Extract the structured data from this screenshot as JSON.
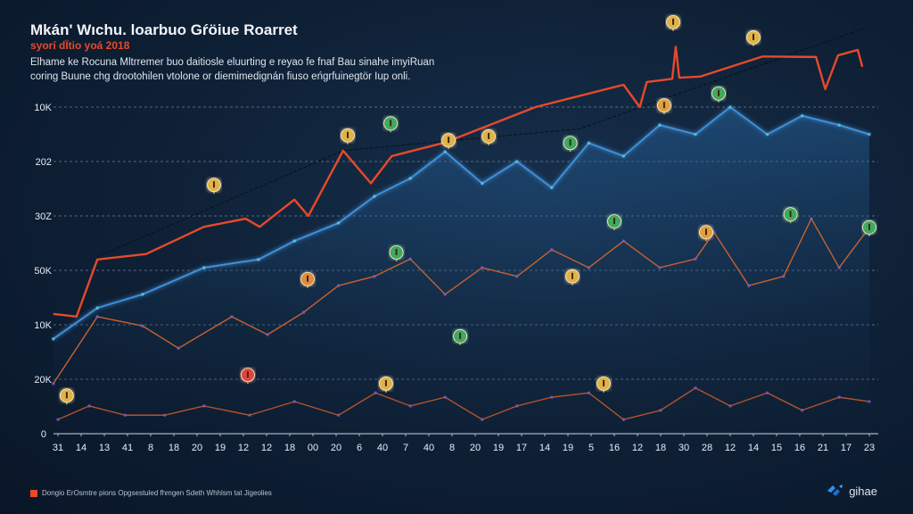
{
  "header": {
    "title": "Mkán' Wıchu. loarbuo Gŕöiue Roarret",
    "subtitle": "syorí dÏtio yoá 2018",
    "description_lines": [
      "Elhame ke Rocuna Mltrremer buo daitiosle eluurting e reyao fe fnaf Bau sinahe imyiRuan",
      "coring Buune chg drootohilen vtolone or diemimedignán fiuso eńgrfuinegtör Iup onli."
    ]
  },
  "legend": {
    "label": "Dongio ErOsmtre pions Opgsestuled fhmgen Sdeth Whhlsm tat Jigeolies",
    "color": "#e8492a"
  },
  "logo": {
    "text": "gihae"
  },
  "chart_data": {
    "type": "line",
    "title": "Mkán' Wıchu. loarbuo Gŕöiue Roarret",
    "xlabel": "",
    "ylabel": "",
    "x_tick_labels": [
      "31",
      "14",
      "13",
      "41",
      "8",
      "18",
      "20",
      "19",
      "12",
      "12",
      "18",
      "00",
      "20",
      "6",
      "40",
      "7",
      "40",
      "8",
      "20",
      "19",
      "17",
      "14",
      "19",
      "5",
      "16",
      "12",
      "18",
      "30",
      "28",
      "12",
      "14",
      "15",
      "16",
      "21",
      "17",
      "23"
    ],
    "y_tick_labels": [
      "0",
      "20K",
      "10K",
      "50K",
      "30Z",
      "202",
      "10K"
    ],
    "xlim": [
      -0.3,
      35.5
    ],
    "ylim": [
      0,
      7.8
    ],
    "grid": true,
    "series": [
      {
        "name": "trend",
        "color": "#0b0f16",
        "style": "dashed",
        "points": [
          [
            1.7,
            3.25
          ],
          [
            12.3,
            5.2
          ],
          [
            22.5,
            5.6
          ],
          [
            34.8,
            7.45
          ]
        ]
      },
      {
        "name": "blue",
        "color": "#3f8fd6",
        "fill": true,
        "points": [
          [
            -0.2,
            1.74
          ],
          [
            1.7,
            2.31
          ],
          [
            3.65,
            2.56
          ],
          [
            6.3,
            3.05
          ],
          [
            8.65,
            3.2
          ],
          [
            10.2,
            3.54
          ],
          [
            12.1,
            3.87
          ],
          [
            13.65,
            4.36
          ],
          [
            15.2,
            4.69
          ],
          [
            16.7,
            5.18
          ],
          [
            18.3,
            4.6
          ],
          [
            19.8,
            5.0
          ],
          [
            21.3,
            4.52
          ],
          [
            22.9,
            5.34
          ],
          [
            24.4,
            5.1
          ],
          [
            25.96,
            5.67
          ],
          [
            27.5,
            5.5
          ],
          [
            29.0,
            6.0
          ],
          [
            30.6,
            5.5
          ],
          [
            32.1,
            5.84
          ],
          [
            33.7,
            5.67
          ],
          [
            35.0,
            5.5
          ]
        ]
      },
      {
        "name": "red",
        "color": "#e8492a",
        "points": [
          [
            -0.2,
            2.2
          ],
          [
            0.8,
            2.15
          ],
          [
            1.7,
            3.2
          ],
          [
            3.8,
            3.3
          ],
          [
            6.3,
            3.8
          ],
          [
            8.1,
            3.95
          ],
          [
            8.7,
            3.8
          ],
          [
            10.2,
            4.3
          ],
          [
            10.8,
            4.0
          ],
          [
            12.3,
            5.2
          ],
          [
            13.5,
            4.6
          ],
          [
            14.4,
            5.1
          ],
          [
            16.7,
            5.35
          ],
          [
            20.6,
            6.0
          ],
          [
            24.4,
            6.41
          ],
          [
            25.1,
            6.0
          ],
          [
            25.4,
            6.46
          ],
          [
            26.5,
            6.52
          ],
          [
            26.65,
            7.11
          ],
          [
            26.8,
            6.54
          ],
          [
            27.7,
            6.56
          ],
          [
            30.4,
            6.93
          ],
          [
            32.7,
            6.92
          ],
          [
            33.1,
            6.33
          ],
          [
            33.65,
            6.95
          ],
          [
            34.5,
            7.05
          ],
          [
            34.7,
            6.74
          ]
        ]
      },
      {
        "name": "orange-mid",
        "color": "#c9612f",
        "points": [
          [
            -0.2,
            0.92
          ],
          [
            1.7,
            2.15
          ],
          [
            3.65,
            1.98
          ],
          [
            5.2,
            1.57
          ],
          [
            7.5,
            2.15
          ],
          [
            9.04,
            1.82
          ],
          [
            10.6,
            2.23
          ],
          [
            12.1,
            2.72
          ],
          [
            13.65,
            2.89
          ],
          [
            15.2,
            3.21
          ],
          [
            16.7,
            2.56
          ],
          [
            18.3,
            3.05
          ],
          [
            19.8,
            2.89
          ],
          [
            21.3,
            3.38
          ],
          [
            22.9,
            3.05
          ],
          [
            24.4,
            3.54
          ],
          [
            25.96,
            3.05
          ],
          [
            27.5,
            3.21
          ],
          [
            28.3,
            3.7
          ],
          [
            29.8,
            2.72
          ],
          [
            31.3,
            2.89
          ],
          [
            32.5,
            3.95
          ],
          [
            33.7,
            3.05
          ],
          [
            35.0,
            3.79
          ]
        ]
      },
      {
        "name": "orange-low",
        "color": "#b5532c",
        "points": [
          [
            0,
            0.26
          ],
          [
            1.35,
            0.51
          ],
          [
            2.9,
            0.34
          ],
          [
            4.6,
            0.34
          ],
          [
            6.3,
            0.51
          ],
          [
            8.27,
            0.34
          ],
          [
            10.2,
            0.59
          ],
          [
            12.1,
            0.34
          ],
          [
            13.7,
            0.75
          ],
          [
            15.2,
            0.51
          ],
          [
            16.7,
            0.67
          ],
          [
            18.3,
            0.26
          ],
          [
            19.8,
            0.51
          ],
          [
            21.3,
            0.67
          ],
          [
            22.9,
            0.75
          ],
          [
            24.4,
            0.26
          ],
          [
            26.0,
            0.43
          ],
          [
            27.5,
            0.84
          ],
          [
            29.0,
            0.51
          ],
          [
            30.6,
            0.75
          ],
          [
            32.1,
            0.43
          ],
          [
            33.7,
            0.67
          ],
          [
            35.0,
            0.59
          ]
        ]
      }
    ],
    "markers": [
      {
        "x": 0.38,
        "y": 0.7,
        "color": "#e0b24a"
      },
      {
        "x": 6.73,
        "y": 4.57,
        "color": "#e0b24a"
      },
      {
        "x": 12.5,
        "y": 5.48,
        "color": "#e0b24a"
      },
      {
        "x": 16.85,
        "y": 5.39,
        "color": "#e0b24a"
      },
      {
        "x": 18.58,
        "y": 5.46,
        "color": "#e0b24a"
      },
      {
        "x": 10.77,
        "y": 2.84,
        "color": "#e08a3a"
      },
      {
        "x": 14.15,
        "y": 0.92,
        "color": "#e0b24a"
      },
      {
        "x": 22.19,
        "y": 2.89,
        "color": "#e0b24a"
      },
      {
        "x": 23.54,
        "y": 0.92,
        "color": "#e0b24a"
      },
      {
        "x": 27.96,
        "y": 3.7,
        "color": "#e0a040"
      },
      {
        "x": 26.54,
        "y": 7.56,
        "color": "#e0b24a"
      },
      {
        "x": 30.0,
        "y": 7.28,
        "color": "#e0b24a"
      },
      {
        "x": 26.15,
        "y": 6.03,
        "color": "#e0a040"
      },
      {
        "x": 14.35,
        "y": 5.7,
        "color": "#3fa860"
      },
      {
        "x": 22.1,
        "y": 5.34,
        "color": "#3fa860"
      },
      {
        "x": 28.5,
        "y": 6.25,
        "color": "#3fa860"
      },
      {
        "x": 14.6,
        "y": 3.33,
        "color": "#3fa860"
      },
      {
        "x": 17.35,
        "y": 1.79,
        "color": "#3fa860"
      },
      {
        "x": 24.0,
        "y": 3.9,
        "color": "#3fa860"
      },
      {
        "x": 31.6,
        "y": 4.03,
        "color": "#3fa860"
      },
      {
        "x": 35.0,
        "y": 3.79,
        "color": "#3fa860"
      },
      {
        "x": 8.19,
        "y": 1.08,
        "color": "#e0453a"
      }
    ]
  }
}
